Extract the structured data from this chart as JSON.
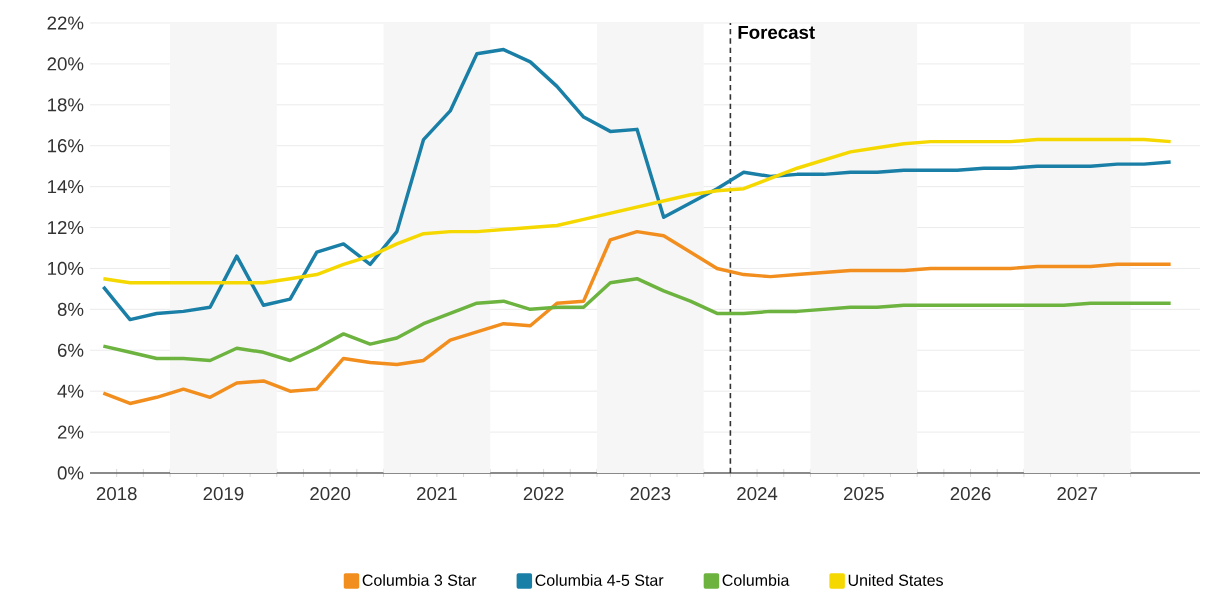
{
  "chart_data": {
    "type": "line",
    "x": [
      2018.375,
      2018.625,
      2018.875,
      2019.125,
      2019.375,
      2019.625,
      2019.875,
      2020.125,
      2020.375,
      2020.625,
      2020.875,
      2021.125,
      2021.375,
      2021.625,
      2021.875,
      2022.125,
      2022.375,
      2022.625,
      2022.875,
      2023.125,
      2023.375,
      2023.625,
      2023.875,
      2024.125,
      2024.375,
      2024.625,
      2024.875,
      2025.125,
      2025.375,
      2025.625,
      2025.875,
      2026.125,
      2026.375,
      2026.625,
      2026.875,
      2027.125,
      2027.375,
      2027.625,
      2027.875,
      2028.125,
      2028.375
    ],
    "series": [
      {
        "name": "Columbia 3 Star",
        "color": "#f28e1e",
        "values": [
          3.9,
          3.4,
          3.7,
          4.1,
          3.7,
          4.4,
          4.5,
          4.0,
          4.1,
          5.6,
          5.4,
          5.3,
          5.5,
          6.5,
          6.9,
          7.3,
          7.2,
          8.3,
          8.4,
          11.4,
          11.8,
          11.6,
          10.8,
          10.0,
          9.7,
          9.6,
          9.7,
          9.8,
          9.9,
          9.9,
          9.9,
          10.0,
          10.0,
          10.0,
          10.0,
          10.1,
          10.1,
          10.1,
          10.2,
          10.2,
          10.2
        ]
      },
      {
        "name": "Columbia 4-5 Star",
        "color": "#1a7fa6",
        "values": [
          9.1,
          7.5,
          7.8,
          7.9,
          8.1,
          10.6,
          8.2,
          8.5,
          10.8,
          11.2,
          10.2,
          11.8,
          16.3,
          17.7,
          20.5,
          20.7,
          20.1,
          18.9,
          17.4,
          16.7,
          16.8,
          12.5,
          13.2,
          13.9,
          14.7,
          14.5,
          14.6,
          14.6,
          14.7,
          14.7,
          14.8,
          14.8,
          14.8,
          14.9,
          14.9,
          15.0,
          15.0,
          15.0,
          15.1,
          15.1,
          15.2
        ]
      },
      {
        "name": "Columbia",
        "color": "#6db33f",
        "values": [
          6.2,
          5.9,
          5.6,
          5.6,
          5.5,
          6.1,
          5.9,
          5.5,
          6.1,
          6.8,
          6.3,
          6.6,
          7.3,
          7.8,
          8.3,
          8.4,
          8.0,
          8.1,
          8.1,
          9.3,
          9.5,
          8.9,
          8.4,
          7.8,
          7.8,
          7.9,
          7.9,
          8.0,
          8.1,
          8.1,
          8.2,
          8.2,
          8.2,
          8.2,
          8.2,
          8.2,
          8.2,
          8.3,
          8.3,
          8.3,
          8.3
        ]
      },
      {
        "name": "United States",
        "color": "#f5d800",
        "values": [
          9.5,
          9.3,
          9.3,
          9.3,
          9.3,
          9.3,
          9.3,
          9.5,
          9.7,
          10.2,
          10.6,
          11.2,
          11.7,
          11.8,
          11.8,
          11.9,
          12.0,
          12.1,
          12.4,
          12.7,
          13.0,
          13.3,
          13.6,
          13.8,
          13.9,
          14.4,
          14.9,
          15.3,
          15.7,
          15.9,
          16.1,
          16.2,
          16.2,
          16.2,
          16.2,
          16.3,
          16.3,
          16.3,
          16.3,
          16.3,
          16.2
        ]
      }
    ],
    "xlim": [
      2018.25,
      2028.65
    ],
    "xticks": [
      {
        "value": 2018.5,
        "label": "2018"
      },
      {
        "value": 2019,
        "label": null
      },
      {
        "value": 2019.5,
        "label": "2019"
      },
      {
        "value": 2020,
        "label": null
      },
      {
        "value": 2020.5,
        "label": "2020"
      },
      {
        "value": 2021,
        "label": null
      },
      {
        "value": 2021.5,
        "label": "2021"
      },
      {
        "value": 2022,
        "label": null
      },
      {
        "value": 2022.5,
        "label": "2022"
      },
      {
        "value": 2023,
        "label": null
      },
      {
        "value": 2023.5,
        "label": "2023"
      },
      {
        "value": 2024,
        "label": null
      },
      {
        "value": 2024.5,
        "label": "2024"
      },
      {
        "value": 2025,
        "label": null
      },
      {
        "value": 2025.5,
        "label": "2025"
      },
      {
        "value": 2026,
        "label": null
      },
      {
        "value": 2026.5,
        "label": "2026"
      },
      {
        "value": 2027,
        "label": null
      },
      {
        "value": 2027.5,
        "label": "2027"
      },
      {
        "value": 2028,
        "label": null
      }
    ],
    "ylim": [
      0,
      22
    ],
    "yticks": [
      {
        "value": 0,
        "label": "0%"
      },
      {
        "value": 2,
        "label": "2%"
      },
      {
        "value": 4,
        "label": "4%"
      },
      {
        "value": 6,
        "label": "6%"
      },
      {
        "value": 8,
        "label": "8%"
      },
      {
        "value": 10,
        "label": "10%"
      },
      {
        "value": 12,
        "label": "12%"
      },
      {
        "value": 14,
        "label": "14%"
      },
      {
        "value": 16,
        "label": "16%"
      },
      {
        "value": 18,
        "label": "18%"
      },
      {
        "value": 20,
        "label": "20%"
      },
      {
        "value": 22,
        "label": "22%"
      }
    ],
    "grid": "y",
    "legend": "bottom",
    "ref_lines": [
      {
        "axis": "x",
        "value": 2024.25,
        "label": "Forecast",
        "color": "#333333",
        "line_style": "dashed"
      }
    ],
    "bands": [
      {
        "axis": "x",
        "from": 2019,
        "to": 2020,
        "color": "#f6f6f6"
      },
      {
        "axis": "x",
        "from": 2021,
        "to": 2022,
        "color": "#f6f6f6"
      },
      {
        "axis": "x",
        "from": 2023,
        "to": 2024,
        "color": "#f6f6f6"
      },
      {
        "axis": "x",
        "from": 2025,
        "to": 2026,
        "color": "#f6f6f6"
      },
      {
        "axis": "x",
        "from": 2027,
        "to": 2028,
        "color": "#f6f6f6"
      }
    ]
  }
}
